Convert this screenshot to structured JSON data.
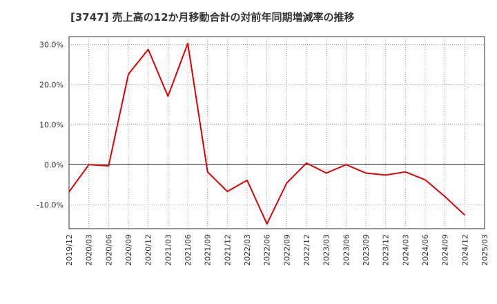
{
  "chart_data": {
    "type": "line",
    "title": "[3747]  売上高の12か月移動合計の対前年同期増減率の推移",
    "xlabel": "",
    "ylabel": "",
    "ylim": [
      -16,
      32
    ],
    "yticks": [
      30,
      20,
      10,
      0,
      -10
    ],
    "ytick_labels": [
      "30.0%",
      "20.0%",
      "10.0%",
      "0.0%",
      "-10.0%"
    ],
    "categories": [
      "2019/12",
      "2020/03",
      "2020/06",
      "2020/09",
      "2020/12",
      "2021/03",
      "2021/06",
      "2021/09",
      "2021/12",
      "2022/03",
      "2022/06",
      "2022/09",
      "2022/12",
      "2023/03",
      "2023/06",
      "2023/09",
      "2023/12",
      "2024/03",
      "2024/06",
      "2024/09",
      "2024/12",
      "2025/03"
    ],
    "series": [
      {
        "name": "増減率",
        "color": "#dd0000",
        "values": [
          -6.8,
          0.0,
          -0.3,
          22.6,
          28.8,
          17.1,
          30.3,
          -1.8,
          -6.7,
          -3.9,
          -14.8,
          -4.6,
          0.4,
          -2.1,
          0.0,
          -2.1,
          -2.6,
          -1.8,
          -3.8,
          -8.0,
          -12.6,
          null
        ]
      }
    ],
    "grid": true,
    "legend": "none"
  }
}
